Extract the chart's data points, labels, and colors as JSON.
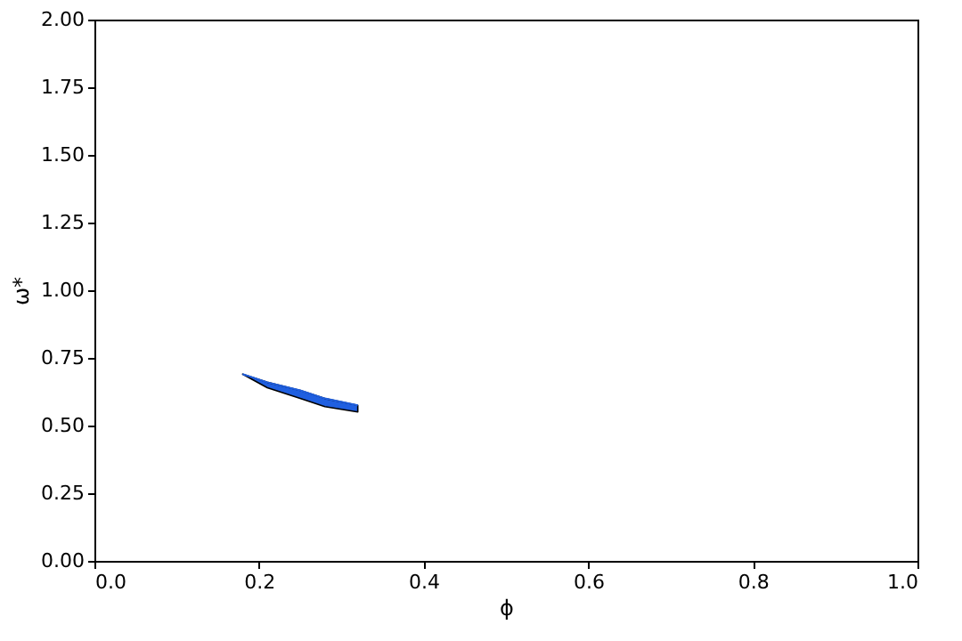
{
  "chart_data": {
    "type": "line",
    "xlabel": "ϕ",
    "ylabel": "ω*",
    "x": [
      0.18,
      0.21,
      0.25,
      0.28,
      0.32
    ],
    "series": [
      {
        "color": "#1f5fe0",
        "values": [
          0.69,
          0.66,
          0.63,
          0.6,
          0.575
        ],
        "lower": [
          0.69,
          0.64,
          0.6,
          0.57,
          0.55
        ],
        "upper": [
          0.69,
          0.66,
          0.63,
          0.6,
          0.575
        ]
      }
    ],
    "xlim": [
      0,
      1
    ],
    "ylim": [
      0,
      2
    ],
    "xticks": [
      {
        "value": 0,
        "label": "0.0"
      },
      {
        "value": 0.2,
        "label": "0.2"
      },
      {
        "value": 0.4,
        "label": "0.4"
      },
      {
        "value": 0.6,
        "label": "0.6"
      },
      {
        "value": 0.8,
        "label": "0.8"
      },
      {
        "value": 1,
        "label": "1.0"
      }
    ],
    "yticks": [
      {
        "value": 0,
        "label": "0.00"
      },
      {
        "value": 0.25,
        "label": "0.25"
      },
      {
        "value": 0.5,
        "label": "0.50"
      },
      {
        "value": 0.75,
        "label": "0.75"
      },
      {
        "value": 1,
        "label": "1.00"
      },
      {
        "value": 1.25,
        "label": "1.25"
      },
      {
        "value": 1.5,
        "label": "1.50"
      },
      {
        "value": 1.75,
        "label": "1.75"
      },
      {
        "value": 2,
        "label": "2.00"
      }
    ],
    "grid": false
  }
}
